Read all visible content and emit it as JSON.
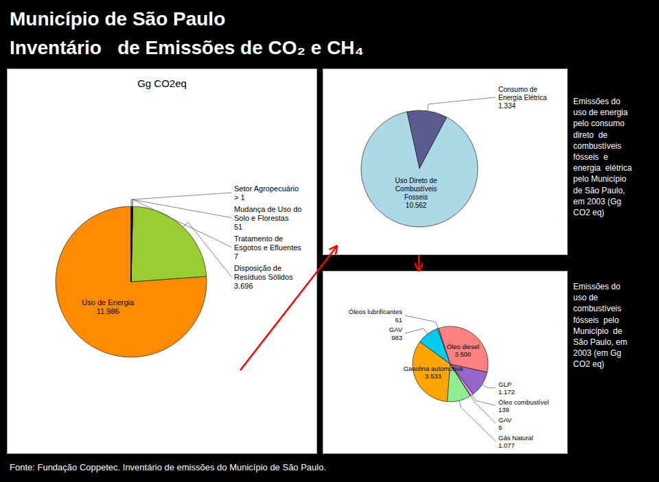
{
  "chart_data": [
    {
      "type": "pie",
      "title": "Município de São Paulo",
      "subtitle": "Inventário   de Emissões de CO₂ e CH₄",
      "annotations": [
        "Gg CO2eq",
        "Fonte: Fundação Coppetec. Inventário de emissões do Município de São Paulo."
      ],
      "categories": [
        "Uso de Energia",
        "Disposição de\nResíduos Sólidos",
        "Tratamento de\nEsgotos e Efluentes",
        "Mudança de Uso do\nSolo e Florestas",
        "Setor Agropecuário"
      ],
      "values": [
        11986,
        3696,
        7,
        51,
        1
      ],
      "value_labels": [
        "11.986",
        "3.696",
        "7",
        "51",
        "> 1"
      ],
      "colors": [
        "#FF8C00",
        "#9ACD32",
        "#6B8E23",
        "#1C1C6E",
        "#444444"
      ],
      "data_labels": true
    },
    {
      "type": "pie",
      "annotations": [
        "Emissões do\nuso de energia\npelo consumo\ndireto  de\ncombustíveis\nfósseis  e\nenergia  elétrica\npelo Município\nde São Paulo,\nem 2003 (Gg\nCO2 eq)"
      ],
      "categories": [
        "Consumo de\nEnergia Elétrica",
        "Uso Direto de\nCombustíveis\nFosseis"
      ],
      "values": [
        1334,
        10562
      ],
      "value_labels": [
        "1.334",
        "10.562"
      ],
      "colors": [
        "#5B5B8F",
        "#ADD8E6"
      ],
      "data_labels": true
    },
    {
      "type": "pie",
      "annotations": [
        "Emissões do\nuso de\ncombustíveis\nfósseis  pelo\nMunicípio  de\nSão Paulo, em\n2003 (em Gg\nCO2 eq)"
      ],
      "categories": [
        "Óleos lubrificantes",
        "GAV",
        "Gasolina automotiva",
        "Gás Natural",
        "GAV",
        "Óleo combustível",
        "GLP",
        "Óleo diesel"
      ],
      "values": [
        61,
        983,
        3533,
        1077,
        9,
        139,
        1172,
        3500
      ],
      "value_labels": [
        "61",
        "983",
        "3.533",
        "1.077",
        "9",
        "139",
        "1.172",
        "3.500"
      ],
      "colors": [
        "#FF9999",
        "#00CCEE",
        "#FFA500",
        "#90EE90",
        "#FFFF44",
        "#DDA0DD",
        "#9966CC",
        "#FF8080"
      ],
      "data_labels": true
    }
  ]
}
